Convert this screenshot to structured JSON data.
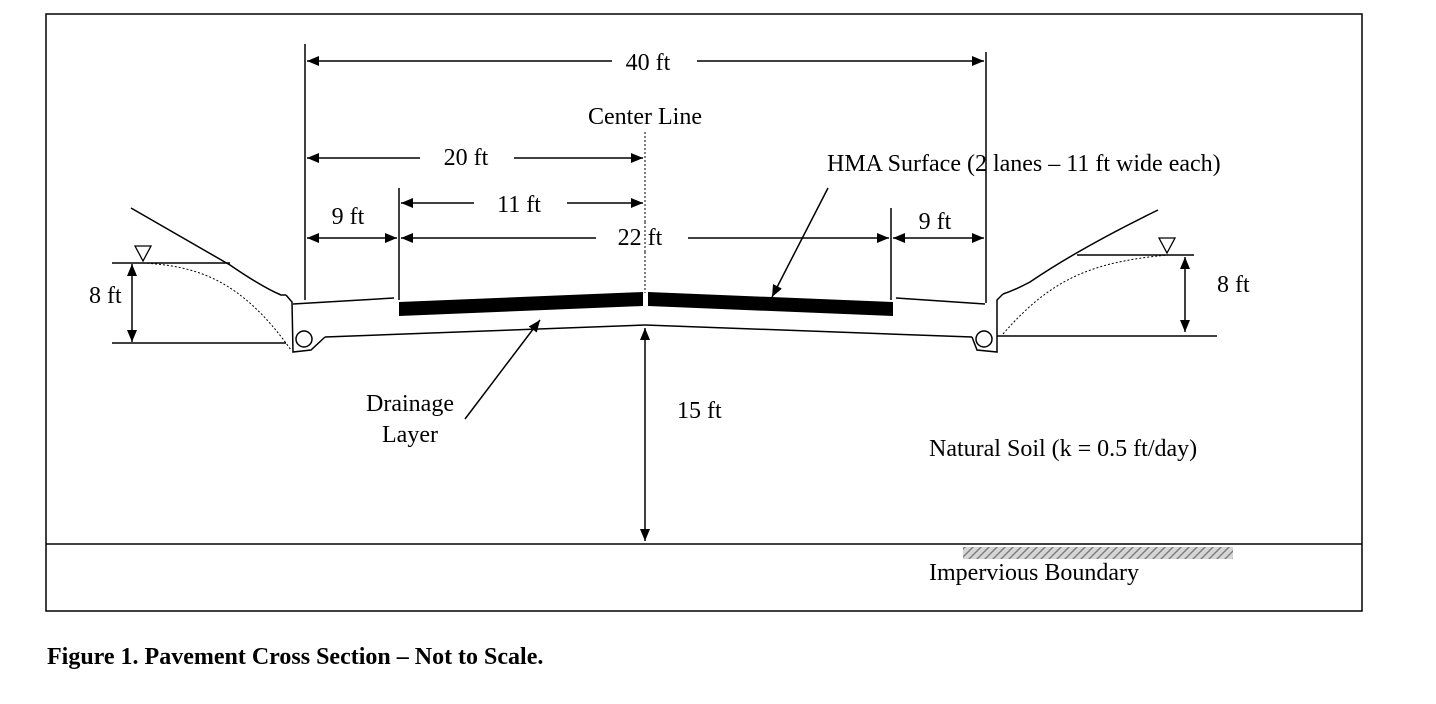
{
  "labels": {
    "total_width": "40 ft",
    "center_line": "Center Line",
    "half_width": "20 ft",
    "lane_width": "11 ft",
    "pavement_width": "22 ft",
    "shoulder_left": "9 ft",
    "shoulder_right": "9 ft",
    "hma_surface": "HMA Surface (2 lanes – 11 ft wide each)",
    "water_depth_left": "8 ft",
    "water_depth_right": "8 ft",
    "drainage_layer_line1": "Drainage",
    "drainage_layer_line2": "Layer",
    "depth_to_boundary": "15 ft",
    "natural_soil": "Natural Soil (k = 0.5 ft/day)",
    "impervious_boundary": "Impervious Boundary"
  },
  "caption": "Figure 1.  Pavement Cross Section – Not to Scale."
}
